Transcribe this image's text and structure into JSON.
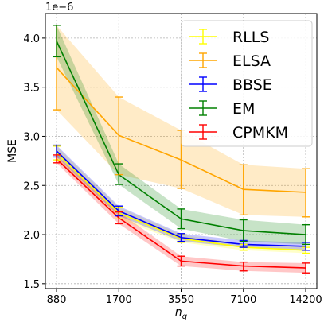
{
  "chart_data": {
    "type": "line",
    "x_categories": [
      "880",
      "1700",
      "3550",
      "7100",
      "14200"
    ],
    "xlabel_base": "n",
    "xlabel_sub": "q",
    "ylabel": "MSE",
    "y_multiplier": "1e−6",
    "ylim": [
      1.45,
      4.25
    ],
    "yticks": [
      1.5,
      2.0,
      2.5,
      3.0,
      3.5,
      4.0
    ],
    "ytick_labels": [
      "1.5",
      "2.0",
      "2.5",
      "3.0",
      "3.5",
      "4.0"
    ],
    "grid": true,
    "legend_position": "top-right",
    "series": [
      {
        "name": "RLLS",
        "color": "#ffff00",
        "values": [
          2.83,
          2.22,
          1.96,
          1.87,
          1.84
        ],
        "err_low": [
          2.76,
          2.16,
          1.92,
          1.84,
          1.81
        ],
        "err_high": [
          2.9,
          2.28,
          2.0,
          1.9,
          1.87
        ],
        "band_low": [
          2.76,
          2.16,
          1.92,
          1.84,
          1.81
        ],
        "band_high": [
          2.9,
          2.28,
          2.0,
          1.9,
          1.87
        ]
      },
      {
        "name": "ELSA",
        "color": "#ffa500",
        "values": [
          3.7,
          3.01,
          2.76,
          2.46,
          2.43
        ],
        "err_low": [
          3.27,
          2.61,
          2.47,
          2.2,
          2.18
        ],
        "err_high": [
          4.13,
          3.4,
          3.06,
          2.71,
          2.67
        ],
        "band_low": [
          3.27,
          2.61,
          2.47,
          2.2,
          2.18
        ],
        "band_high": [
          4.13,
          3.4,
          3.06,
          2.71,
          2.67
        ]
      },
      {
        "name": "BBSE",
        "color": "#0000ff",
        "values": [
          2.85,
          2.24,
          1.97,
          1.9,
          1.88
        ],
        "err_low": [
          2.79,
          2.19,
          1.93,
          1.87,
          1.84
        ],
        "err_high": [
          2.91,
          2.29,
          2.01,
          1.94,
          1.92
        ],
        "band_low": [
          2.79,
          2.19,
          1.93,
          1.87,
          1.84
        ],
        "band_high": [
          2.91,
          2.29,
          2.01,
          1.94,
          1.92
        ]
      },
      {
        "name": "EM",
        "color": "#008000",
        "values": [
          3.97,
          2.61,
          2.16,
          2.04,
          2.0
        ],
        "err_low": [
          3.81,
          2.51,
          2.06,
          1.93,
          1.9
        ],
        "err_high": [
          4.13,
          2.72,
          2.26,
          2.15,
          2.1
        ],
        "band_low": [
          3.81,
          2.51,
          2.06,
          1.93,
          1.9
        ],
        "band_high": [
          4.13,
          2.72,
          2.26,
          2.15,
          2.1
        ]
      },
      {
        "name": "CPMKM",
        "color": "#ff0000",
        "values": [
          2.77,
          2.17,
          1.73,
          1.68,
          1.66
        ],
        "err_low": [
          2.73,
          2.11,
          1.68,
          1.63,
          1.61
        ],
        "err_high": [
          2.81,
          2.23,
          1.78,
          1.72,
          1.71
        ],
        "band_low": [
          2.73,
          2.11,
          1.68,
          1.63,
          1.61
        ],
        "band_high": [
          2.81,
          2.23,
          1.78,
          1.72,
          1.71
        ]
      }
    ]
  }
}
